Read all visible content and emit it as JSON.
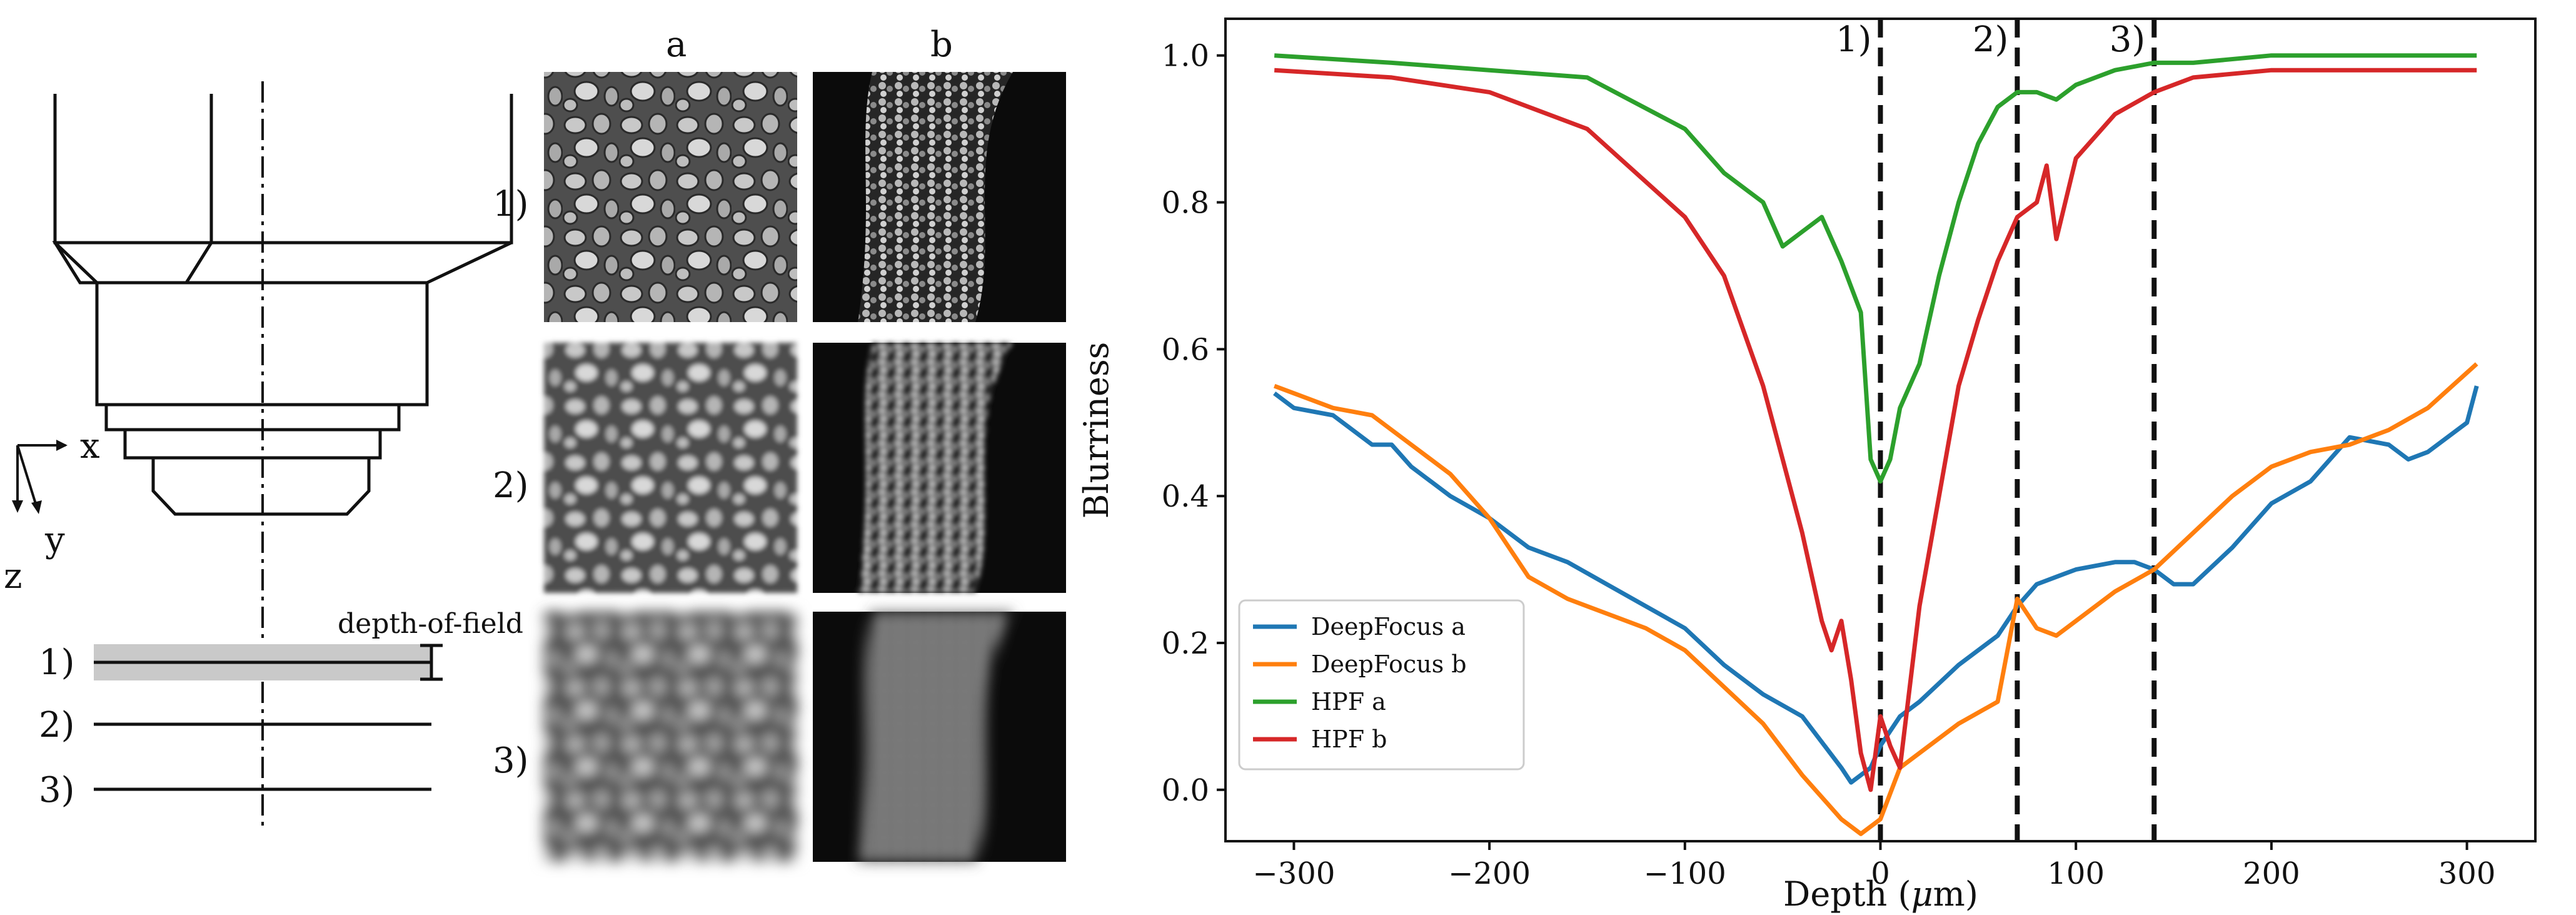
{
  "diagram": {
    "axes": {
      "x": "x",
      "y": "y",
      "z": "z"
    },
    "planes": [
      "1)",
      "2)",
      "3)"
    ],
    "dof_label": "depth-of-field"
  },
  "images": {
    "columns": [
      "a",
      "b"
    ],
    "rows": [
      "1)",
      "2)",
      "3)"
    ]
  },
  "chart_data": {
    "type": "line",
    "xlabel_prefix": "Depth (",
    "xlabel_mu": "μ",
    "xlabel_suffix": "m)",
    "ylabel": "Blurriness",
    "xlim": [
      -335,
      335
    ],
    "ylim": [
      -0.07,
      1.05
    ],
    "xticks": [
      -300,
      -200,
      -100,
      0,
      100,
      200,
      300
    ],
    "xtick_labels": [
      "−300",
      "−200",
      "−100",
      "0",
      "100",
      "200",
      "300"
    ],
    "yticks": [
      0.0,
      0.2,
      0.4,
      0.6,
      0.8,
      1.0
    ],
    "ytick_labels": [
      "0.0",
      "0.2",
      "0.4",
      "0.6",
      "0.8",
      "1.0"
    ],
    "vlines": [
      {
        "x": 0,
        "label": "1)"
      },
      {
        "x": 70,
        "label": "2)"
      },
      {
        "x": 140,
        "label": "3)"
      }
    ],
    "legend_position": "lower-left",
    "series": [
      {
        "name": "DeepFocus a",
        "color": "#1f77b4",
        "x": [
          -310,
          -300,
          -280,
          -260,
          -250,
          -240,
          -220,
          -200,
          -180,
          -160,
          -140,
          -120,
          -100,
          -80,
          -60,
          -40,
          -20,
          -15,
          -10,
          -5,
          0,
          5,
          10,
          20,
          40,
          60,
          70,
          80,
          90,
          100,
          120,
          130,
          140,
          150,
          160,
          180,
          200,
          220,
          240,
          260,
          270,
          280,
          300,
          305
        ],
        "y": [
          0.54,
          0.52,
          0.51,
          0.47,
          0.47,
          0.44,
          0.4,
          0.37,
          0.33,
          0.31,
          0.28,
          0.25,
          0.22,
          0.17,
          0.13,
          0.1,
          0.03,
          0.01,
          0.02,
          0.03,
          0.06,
          0.08,
          0.1,
          0.12,
          0.17,
          0.21,
          0.25,
          0.28,
          0.29,
          0.3,
          0.31,
          0.31,
          0.3,
          0.28,
          0.28,
          0.33,
          0.39,
          0.42,
          0.48,
          0.47,
          0.45,
          0.46,
          0.5,
          0.55
        ]
      },
      {
        "name": "DeepFocus b",
        "color": "#ff7f0e",
        "x": [
          -310,
          -300,
          -280,
          -260,
          -240,
          -220,
          -200,
          -180,
          -160,
          -140,
          -120,
          -100,
          -80,
          -60,
          -40,
          -20,
          -10,
          0,
          10,
          20,
          40,
          60,
          70,
          80,
          90,
          100,
          120,
          140,
          160,
          180,
          200,
          220,
          240,
          260,
          280,
          305
        ],
        "y": [
          0.55,
          0.54,
          0.52,
          0.51,
          0.47,
          0.43,
          0.37,
          0.29,
          0.26,
          0.24,
          0.22,
          0.19,
          0.14,
          0.09,
          0.02,
          -0.04,
          -0.06,
          -0.04,
          0.03,
          0.05,
          0.09,
          0.12,
          0.26,
          0.22,
          0.21,
          0.23,
          0.27,
          0.3,
          0.35,
          0.4,
          0.44,
          0.46,
          0.47,
          0.49,
          0.52,
          0.58
        ]
      },
      {
        "name": "HPF a",
        "color": "#2ca02c",
        "x": [
          -310,
          -250,
          -200,
          -150,
          -100,
          -80,
          -60,
          -50,
          -40,
          -30,
          -20,
          -10,
          -5,
          0,
          5,
          10,
          20,
          30,
          40,
          50,
          60,
          70,
          80,
          90,
          100,
          120,
          140,
          160,
          200,
          250,
          305
        ],
        "y": [
          1.0,
          0.99,
          0.98,
          0.97,
          0.9,
          0.84,
          0.8,
          0.74,
          0.76,
          0.78,
          0.72,
          0.65,
          0.45,
          0.42,
          0.45,
          0.52,
          0.58,
          0.7,
          0.8,
          0.88,
          0.93,
          0.95,
          0.95,
          0.94,
          0.96,
          0.98,
          0.99,
          0.99,
          1.0,
          1.0,
          1.0
        ]
      },
      {
        "name": "HPF b",
        "color": "#d62728",
        "x": [
          -310,
          -250,
          -200,
          -150,
          -100,
          -80,
          -60,
          -50,
          -40,
          -30,
          -25,
          -20,
          -15,
          -10,
          -5,
          0,
          5,
          10,
          20,
          30,
          40,
          50,
          60,
          70,
          80,
          85,
          90,
          100,
          120,
          140,
          160,
          200,
          250,
          305
        ],
        "y": [
          0.98,
          0.97,
          0.95,
          0.9,
          0.78,
          0.7,
          0.55,
          0.45,
          0.35,
          0.23,
          0.19,
          0.23,
          0.15,
          0.05,
          0.0,
          0.1,
          0.06,
          0.03,
          0.25,
          0.4,
          0.55,
          0.64,
          0.72,
          0.78,
          0.8,
          0.85,
          0.75,
          0.86,
          0.92,
          0.95,
          0.97,
          0.98,
          0.98,
          0.98
        ]
      }
    ]
  }
}
